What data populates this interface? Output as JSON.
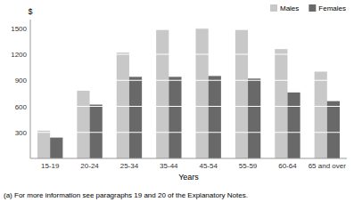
{
  "chart_data": {
    "type": "bar",
    "categories": [
      "15-19",
      "20-24",
      "25-34",
      "35-44",
      "45-54",
      "55-59",
      "60-64",
      "65 and over"
    ],
    "series": [
      {
        "name": "Males",
        "color": "#c8c8c8",
        "values": [
          320,
          780,
          1220,
          1480,
          1500,
          1480,
          1260,
          1000
        ]
      },
      {
        "name": "Females",
        "color": "#696969",
        "values": [
          240,
          620,
          940,
          940,
          950,
          920,
          760,
          660
        ]
      }
    ],
    "xlabel": "Years",
    "ylabel": "$",
    "ylim": [
      0,
      1600
    ],
    "yticks": [
      300,
      600,
      900,
      1200,
      1500
    ],
    "grid": true,
    "legend": "upper right",
    "footnote": "(a) For more information see paragraphs 19 and 20 of the Explanatory Notes."
  }
}
